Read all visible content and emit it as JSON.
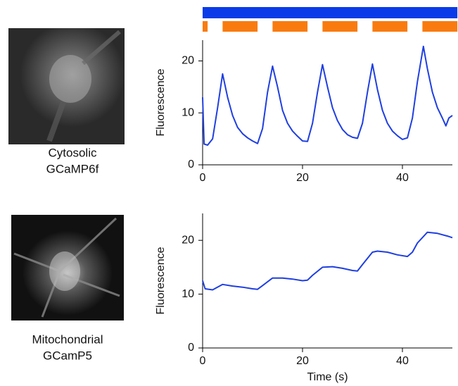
{
  "chart_data": [
    {
      "type": "line",
      "ylabel": "Fluorescence",
      "image_caption": [
        "Cytosolic",
        "GCaMP6f"
      ],
      "color": "#1f3fe0",
      "light_bar": {
        "color": "#0b3be8",
        "interval": [
          0,
          51
        ]
      },
      "stimulus": {
        "color": "#f97b0f",
        "intervals": [
          [
            0,
            1
          ],
          [
            4,
            11
          ],
          [
            14,
            21
          ],
          [
            24,
            31
          ],
          [
            34,
            41
          ],
          [
            44,
            51
          ]
        ]
      },
      "x": [
        0,
        0.3,
        1,
        2,
        3,
        4,
        5,
        6,
        7,
        8,
        9,
        10,
        11,
        12,
        13,
        14,
        15,
        16,
        17,
        18,
        19,
        20,
        21,
        22,
        23,
        24,
        25,
        26,
        27,
        28,
        29,
        30,
        31,
        32,
        33,
        34,
        35,
        36,
        37,
        38,
        39,
        40,
        41,
        42,
        43,
        44.2,
        45,
        46,
        47,
        48,
        48.7,
        49.3,
        50
      ],
      "values": [
        13,
        4,
        3.8,
        5,
        11,
        17.5,
        13,
        9.5,
        7.2,
        6,
        5.2,
        4.6,
        4.1,
        7,
        14,
        19,
        15,
        10.5,
        8,
        6.5,
        5.5,
        4.6,
        4.5,
        8,
        14,
        19.3,
        15,
        11,
        8.5,
        6.8,
        5.8,
        5.3,
        5.1,
        8,
        14,
        19.4,
        14.5,
        10.5,
        8,
        6.5,
        5.6,
        4.9,
        5.2,
        9,
        16,
        22.8,
        18.5,
        14,
        11,
        9,
        7.5,
        9,
        9.5
      ],
      "xlim": [
        0,
        50
      ],
      "xticks": [
        0,
        20,
        40
      ],
      "ylim": [
        0,
        24
      ],
      "yticks": [
        0,
        10,
        20
      ]
    },
    {
      "type": "line",
      "ylabel": "Fluorescence",
      "xlabel": "Time (s)",
      "image_caption": [
        "Mitochondrial",
        "GCamP5"
      ],
      "color": "#1f3fe0",
      "x": [
        0,
        0.5,
        2,
        4,
        6,
        8,
        10,
        11,
        12,
        14,
        16,
        18,
        20,
        21,
        22,
        24,
        26,
        28,
        30,
        31,
        32,
        34,
        35,
        37,
        39,
        41,
        42,
        43,
        45,
        47,
        49,
        50
      ],
      "values": [
        12.5,
        11,
        10.8,
        11.8,
        11.5,
        11.3,
        11,
        10.9,
        11.6,
        13,
        13,
        12.8,
        12.5,
        12.6,
        13.5,
        15,
        15.1,
        14.8,
        14.4,
        14.3,
        15.5,
        17.8,
        18,
        17.8,
        17.3,
        17,
        17.8,
        19.5,
        21.5,
        21.3,
        20.8,
        20.5
      ],
      "xlim": [
        0,
        50
      ],
      "xticks": [
        0,
        20,
        40
      ],
      "ylim": [
        0,
        25
      ],
      "yticks": [
        0,
        10,
        20
      ]
    }
  ]
}
